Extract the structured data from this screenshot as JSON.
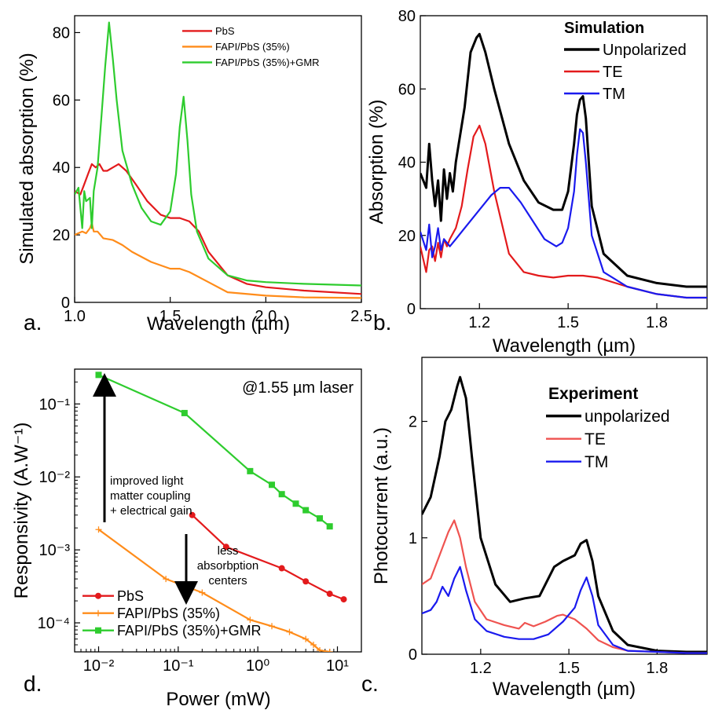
{
  "figure_colors": {
    "PbS": "#e31a1c",
    "FAPI": "#ff8c1a",
    "GMR": "#2ecc2e",
    "black": "#000000",
    "TE": "#e31a1c",
    "TE_exp": "#ef5350",
    "TM": "#1a1aee"
  },
  "chart_data": [
    {
      "panel": "a.",
      "type": "line",
      "xlabel": "Wavelength (µm)",
      "ylabel": "Simulated absorption (%)",
      "xlim": [
        1.0,
        2.5
      ],
      "ylim": [
        0,
        85
      ],
      "xticks": [
        1.0,
        1.5,
        2.0,
        2.5
      ],
      "xtick_labels": [
        "1.0",
        "1.5",
        "2.0",
        "2.5"
      ],
      "yticks": [
        0,
        20,
        40,
        60,
        80
      ],
      "ytick_labels": [
        "0",
        "20",
        "40",
        "60",
        "80"
      ],
      "legend_position": "top-right",
      "series": [
        {
          "name": "PbS",
          "color": "#e31a1c",
          "x": [
            1.0,
            1.03,
            1.05,
            1.07,
            1.09,
            1.11,
            1.13,
            1.15,
            1.17,
            1.2,
            1.23,
            1.27,
            1.32,
            1.38,
            1.45,
            1.5,
            1.55,
            1.6,
            1.65,
            1.7,
            1.8,
            1.9,
            2.0,
            2.2,
            2.5
          ],
          "y": [
            33,
            32,
            35,
            38,
            41,
            40,
            41,
            39,
            39,
            40,
            41,
            39,
            35,
            30,
            26,
            25,
            25,
            24,
            21,
            15,
            8,
            5.5,
            4.5,
            3.5,
            2.5
          ]
        },
        {
          "name": "FAPI/PbS (35%)",
          "color": "#ff8c1a",
          "x": [
            1.0,
            1.04,
            1.06,
            1.08,
            1.09,
            1.1,
            1.12,
            1.15,
            1.2,
            1.25,
            1.3,
            1.4,
            1.5,
            1.55,
            1.6,
            1.7,
            1.8,
            2.0,
            2.2,
            2.5
          ],
          "y": [
            20,
            21,
            20.5,
            22,
            23.5,
            21,
            21,
            19,
            18.5,
            17,
            15,
            12,
            10,
            10,
            9,
            6,
            3,
            2,
            1.5,
            1.3
          ]
        },
        {
          "name": "FAPI/PbS (35%)+GMR",
          "color": "#2ecc2e",
          "x": [
            1.0,
            1.02,
            1.04,
            1.05,
            1.06,
            1.08,
            1.09,
            1.1,
            1.12,
            1.14,
            1.16,
            1.18,
            1.2,
            1.22,
            1.25,
            1.3,
            1.35,
            1.4,
            1.45,
            1.5,
            1.53,
            1.55,
            1.57,
            1.59,
            1.61,
            1.64,
            1.7,
            1.8,
            1.9,
            2.0,
            2.2,
            2.5
          ],
          "y": [
            32,
            34,
            22,
            33,
            30,
            31,
            22,
            33,
            40,
            55,
            70,
            83,
            72,
            60,
            45,
            35,
            28,
            24,
            23,
            27,
            38,
            52,
            61,
            48,
            32,
            21,
            13,
            8,
            6.5,
            6,
            5.5,
            5
          ]
        }
      ]
    },
    {
      "panel": "b.",
      "type": "line",
      "xlabel": "Wavelength (µm)",
      "ylabel": "Absorption (%)",
      "xlim": [
        1.0,
        1.97
      ],
      "ylim": [
        0,
        80
      ],
      "xticks": [
        1.2,
        1.5,
        1.8
      ],
      "xtick_labels": [
        "1.2",
        "1.5",
        "1.8"
      ],
      "yticks": [
        0,
        20,
        40,
        60,
        80
      ],
      "ytick_labels": [
        "0",
        "20",
        "40",
        "60",
        "80"
      ],
      "legend_title": "Simulation",
      "legend_position": "top-right",
      "series": [
        {
          "name": "Unpolarized",
          "color": "#000000",
          "x": [
            1.0,
            1.02,
            1.03,
            1.04,
            1.05,
            1.06,
            1.07,
            1.08,
            1.09,
            1.1,
            1.11,
            1.12,
            1.13,
            1.15,
            1.17,
            1.19,
            1.2,
            1.22,
            1.25,
            1.3,
            1.35,
            1.4,
            1.45,
            1.48,
            1.5,
            1.52,
            1.53,
            1.54,
            1.55,
            1.56,
            1.58,
            1.62,
            1.7,
            1.8,
            1.9,
            1.97
          ],
          "y": [
            37,
            33,
            45,
            35,
            28,
            35,
            24,
            38,
            30,
            37,
            32,
            40,
            45,
            55,
            70,
            74,
            75,
            70,
            60,
            45,
            35,
            29,
            27,
            27,
            32,
            45,
            53,
            57,
            58,
            52,
            28,
            15,
            9,
            7,
            6,
            6
          ]
        },
        {
          "name": "TE",
          "color": "#e31a1c",
          "x": [
            1.0,
            1.02,
            1.03,
            1.04,
            1.05,
            1.06,
            1.07,
            1.08,
            1.09,
            1.1,
            1.12,
            1.14,
            1.16,
            1.18,
            1.2,
            1.22,
            1.25,
            1.3,
            1.35,
            1.4,
            1.45,
            1.5,
            1.55,
            1.6,
            1.7,
            1.8,
            1.9,
            1.97
          ],
          "y": [
            17,
            10,
            16,
            17,
            13,
            18,
            14,
            19,
            17,
            19,
            22,
            28,
            38,
            47,
            50,
            45,
            32,
            15,
            10,
            9,
            8.5,
            9,
            9,
            8.5,
            6,
            4,
            3,
            3
          ]
        },
        {
          "name": "TM",
          "color": "#1a1aee",
          "x": [
            1.0,
            1.02,
            1.03,
            1.04,
            1.05,
            1.06,
            1.07,
            1.08,
            1.1,
            1.12,
            1.14,
            1.17,
            1.2,
            1.24,
            1.27,
            1.3,
            1.34,
            1.38,
            1.42,
            1.46,
            1.48,
            1.5,
            1.52,
            1.53,
            1.54,
            1.55,
            1.56,
            1.58,
            1.62,
            1.7,
            1.8,
            1.9,
            1.97
          ],
          "y": [
            21,
            16,
            23,
            14,
            17,
            22,
            16,
            19,
            17,
            19,
            21,
            24,
            27,
            31,
            33,
            33,
            29,
            24,
            19,
            17,
            18,
            22,
            32,
            42,
            49,
            48,
            40,
            20,
            10,
            6,
            4,
            3,
            3
          ]
        }
      ]
    },
    {
      "panel": "d.",
      "type": "line",
      "log_x": true,
      "log_y": true,
      "xlabel": "Power (mW)",
      "ylabel": "Responsivity (A.W⁻¹)",
      "xlim": [
        0.005,
        20
      ],
      "ylim": [
        4e-05,
        0.3
      ],
      "xticks": [
        0.01,
        0.1,
        1,
        10
      ],
      "xtick_labels": [
        "10⁻²",
        "10⁻¹",
        "10⁰",
        "10¹"
      ],
      "yticks": [
        0.0001,
        0.001,
        0.01,
        0.1
      ],
      "ytick_labels": [
        "10⁻⁴",
        "10⁻³",
        "10⁻²",
        "10⁻¹"
      ],
      "legend_position": "bottom-left",
      "series": [
        {
          "name": "PbS",
          "color": "#e31a1c",
          "marker": "circle",
          "x": [
            0.15,
            0.4,
            2,
            4,
            8,
            12
          ],
          "y": [
            0.003,
            0.0011,
            0.00056,
            0.00037,
            0.00025,
            0.00021
          ]
        },
        {
          "name": "FAPI/PbS (35%)",
          "color": "#ff8c1a",
          "marker": "plus",
          "x": [
            0.01,
            0.07,
            0.2,
            0.8,
            1.5,
            2.5,
            4,
            5,
            6,
            8
          ],
          "y": [
            0.0019,
            0.0004,
            0.00026,
            0.00011,
            9e-05,
            7.5e-05,
            6e-05,
            5e-05,
            4.2e-05,
            4e-05
          ]
        },
        {
          "name": "FAPI/PbS (35%)+GMR",
          "color": "#2ecc2e",
          "marker": "square",
          "x": [
            0.01,
            0.12,
            0.8,
            1.5,
            2,
            3,
            4,
            6,
            8
          ],
          "y": [
            0.25,
            0.075,
            0.012,
            0.0078,
            0.0058,
            0.0043,
            0.0035,
            0.0027,
            0.0021
          ]
        }
      ],
      "annotations": [
        {
          "text": "@1.55 µm laser"
        },
        {
          "text": "improved light"
        },
        {
          "text": "matter coupling"
        },
        {
          "text": "+ electrical gain"
        },
        {
          "text": "less"
        },
        {
          "text": "absorbption"
        },
        {
          "text": "centers"
        }
      ]
    },
    {
      "panel": "c.",
      "type": "line",
      "xlabel": "Wavelength (µm)",
      "ylabel": "Photocurrent (a.u.)",
      "xlim": [
        1.0,
        1.97
      ],
      "ylim": [
        0,
        2.55
      ],
      "xticks": [
        1.2,
        1.5,
        1.8
      ],
      "xtick_labels": [
        "1.2",
        "1.5",
        "1.8"
      ],
      "yticks": [
        0,
        1,
        2
      ],
      "ytick_labels": [
        "0",
        "1",
        "2"
      ],
      "legend_title": "Experiment",
      "legend_position": "top-right",
      "series": [
        {
          "name": "unpolarized",
          "color": "#000000",
          "x": [
            1.0,
            1.03,
            1.06,
            1.08,
            1.1,
            1.12,
            1.13,
            1.15,
            1.17,
            1.2,
            1.25,
            1.3,
            1.35,
            1.4,
            1.45,
            1.48,
            1.52,
            1.54,
            1.56,
            1.58,
            1.6,
            1.65,
            1.7,
            1.8,
            1.9,
            1.97
          ],
          "y": [
            1.2,
            1.35,
            1.7,
            2.0,
            2.1,
            2.3,
            2.38,
            2.2,
            1.7,
            1.0,
            0.6,
            0.45,
            0.48,
            0.5,
            0.75,
            0.8,
            0.85,
            0.95,
            0.98,
            0.8,
            0.5,
            0.2,
            0.08,
            0.03,
            0.02,
            0.02
          ]
        },
        {
          "name": "TE",
          "color": "#ef5350",
          "x": [
            1.0,
            1.03,
            1.06,
            1.09,
            1.11,
            1.13,
            1.15,
            1.18,
            1.22,
            1.28,
            1.33,
            1.35,
            1.38,
            1.42,
            1.46,
            1.48,
            1.52,
            1.56,
            1.6,
            1.65,
            1.7,
            1.8,
            1.9,
            1.97
          ],
          "y": [
            0.6,
            0.65,
            0.85,
            1.05,
            1.15,
            1.0,
            0.75,
            0.45,
            0.3,
            0.25,
            0.22,
            0.27,
            0.24,
            0.28,
            0.33,
            0.34,
            0.3,
            0.22,
            0.12,
            0.06,
            0.03,
            0.02,
            0.01,
            0.01
          ]
        },
        {
          "name": "TM",
          "color": "#1a1aee",
          "x": [
            1.0,
            1.03,
            1.05,
            1.07,
            1.09,
            1.11,
            1.13,
            1.15,
            1.18,
            1.22,
            1.28,
            1.33,
            1.38,
            1.43,
            1.48,
            1.52,
            1.54,
            1.56,
            1.58,
            1.6,
            1.65,
            1.7,
            1.8,
            1.9,
            1.97
          ],
          "y": [
            0.35,
            0.38,
            0.45,
            0.58,
            0.5,
            0.65,
            0.75,
            0.55,
            0.3,
            0.2,
            0.15,
            0.13,
            0.13,
            0.17,
            0.28,
            0.4,
            0.55,
            0.66,
            0.5,
            0.25,
            0.08,
            0.03,
            0.02,
            0.01,
            0.01
          ]
        }
      ]
    }
  ]
}
